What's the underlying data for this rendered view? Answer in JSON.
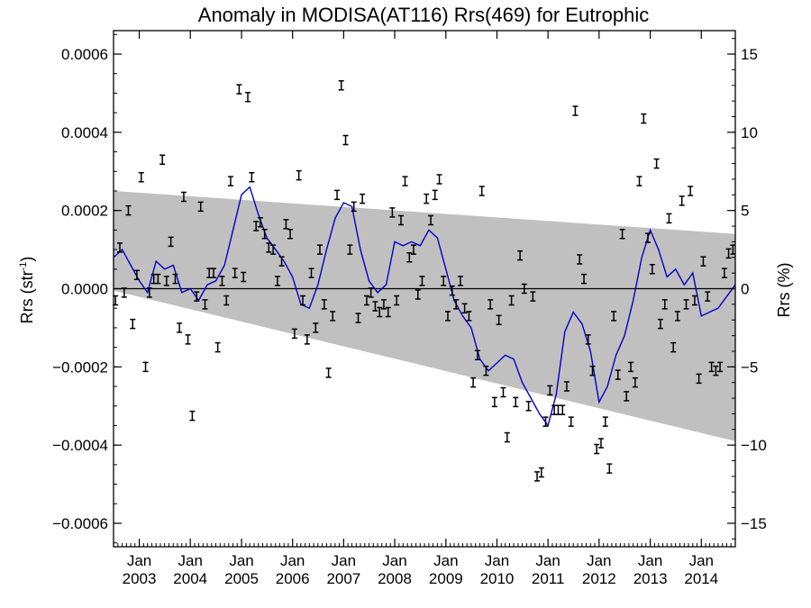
{
  "chart_data": {
    "type": "scatter",
    "title": "Anomaly in MODISA(AT116) Rrs(469) for Eutrophic",
    "ylabel_left": {
      "text": "Rrs (str",
      "sup": "-1",
      "close": ")"
    },
    "ylabel_right": "Rrs (%)",
    "x_range": [
      "2002-07-01",
      "2014-09-01"
    ],
    "y_left_range": [
      -0.00066,
      0.00066
    ],
    "y_right_range": [
      -16.5,
      16.5
    ],
    "y_left_ticks": [
      {
        "value": 0.0006,
        "label": "0.0006"
      },
      {
        "value": 0.0004,
        "label": "0.0004"
      },
      {
        "value": 0.0002,
        "label": "0.0002"
      },
      {
        "value": 0.0,
        "label": "0.0000"
      },
      {
        "value": -0.0002,
        "label": "−0.0002"
      },
      {
        "value": -0.0004,
        "label": "−0.0004"
      },
      {
        "value": -0.0006,
        "label": "−0.0006"
      }
    ],
    "y_right_ticks": [
      {
        "value": 15,
        "label": "15"
      },
      {
        "value": 10,
        "label": "10"
      },
      {
        "value": 5,
        "label": "5"
      },
      {
        "value": 0,
        "label": "0"
      },
      {
        "value": -5,
        "label": "−5"
      },
      {
        "value": -10,
        "label": "−10"
      },
      {
        "value": -15,
        "label": "−15"
      }
    ],
    "x_ticks": [
      {
        "date": "2003-01-01",
        "month": "Jan",
        "year": "2003"
      },
      {
        "date": "2004-01-01",
        "month": "Jan",
        "year": "2004"
      },
      {
        "date": "2005-01-01",
        "month": "Jan",
        "year": "2005"
      },
      {
        "date": "2006-01-01",
        "month": "Jan",
        "year": "2006"
      },
      {
        "date": "2007-01-01",
        "month": "Jan",
        "year": "2007"
      },
      {
        "date": "2008-01-01",
        "month": "Jan",
        "year": "2008"
      },
      {
        "date": "2009-01-01",
        "month": "Jan",
        "year": "2009"
      },
      {
        "date": "2010-01-01",
        "month": "Jan",
        "year": "2010"
      },
      {
        "date": "2011-01-01",
        "month": "Jan",
        "year": "2011"
      },
      {
        "date": "2012-01-01",
        "month": "Jan",
        "year": "2012"
      },
      {
        "date": "2013-01-01",
        "month": "Jan",
        "year": "2013"
      },
      {
        "date": "2014-01-01",
        "month": "Jan",
        "year": "2014"
      }
    ],
    "band": {
      "upper": [
        [
          "2002-07-01",
          0.00025
        ],
        [
          "2014-09-01",
          0.00014
        ]
      ],
      "lower": [
        [
          "2002-07-01",
          -5e-06
        ],
        [
          "2014-09-01",
          -0.00039
        ]
      ],
      "color": "#c0c0c0"
    },
    "smooth_color": "#0000cc",
    "point_color": "#000000",
    "points": [
      [
        "2002-07-15",
        -3e-05
      ],
      [
        "2002-08-15",
        0.000105
      ],
      [
        "2002-09-15",
        -1e-05
      ],
      [
        "2002-10-15",
        0.0002
      ],
      [
        "2002-11-15",
        -9e-05
      ],
      [
        "2002-12-15",
        3.5e-05
      ],
      [
        "2003-01-15",
        0.000285
      ],
      [
        "2003-02-15",
        -0.0002
      ],
      [
        "2003-03-15",
        -1e-05
      ],
      [
        "2003-04-15",
        2.5e-05
      ],
      [
        "2003-05-15",
        2.5e-05
      ],
      [
        "2003-06-15",
        0.00033
      ],
      [
        "2003-07-15",
        2e-05
      ],
      [
        "2003-08-15",
        0.00012
      ],
      [
        "2003-09-15",
        2.5e-05
      ],
      [
        "2003-10-15",
        -0.0001
      ],
      [
        "2003-11-15",
        0.000235
      ],
      [
        "2003-12-15",
        -0.00013
      ],
      [
        "2004-01-15",
        -0.000325
      ],
      [
        "2004-02-15",
        -2e-05
      ],
      [
        "2004-03-15",
        0.00021
      ],
      [
        "2004-04-15",
        -4e-05
      ],
      [
        "2004-05-15",
        4e-05
      ],
      [
        "2004-06-15",
        4e-05
      ],
      [
        "2004-07-15",
        -0.00015
      ],
      [
        "2004-08-15",
        2e-05
      ],
      [
        "2004-09-15",
        -3e-05
      ],
      [
        "2004-10-15",
        0.000275
      ],
      [
        "2004-11-15",
        4e-05
      ],
      [
        "2004-12-15",
        0.00051
      ],
      [
        "2005-01-15",
        3e-05
      ],
      [
        "2005-02-15",
        0.00049
      ],
      [
        "2005-03-15",
        0.000285
      ],
      [
        "2005-04-15",
        0.00016
      ],
      [
        "2005-05-15",
        0.00017
      ],
      [
        "2005-06-15",
        0.00014
      ],
      [
        "2005-07-15",
        0.000105
      ],
      [
        "2005-08-15",
        0.0001
      ],
      [
        "2005-09-15",
        2e-05
      ],
      [
        "2005-10-15",
        7e-05
      ],
      [
        "2005-11-15",
        0.000165
      ],
      [
        "2005-12-15",
        0.00014
      ],
      [
        "2006-01-15",
        -0.000115
      ],
      [
        "2006-02-15",
        0.00029
      ],
      [
        "2006-03-15",
        -3e-05
      ],
      [
        "2006-04-15",
        -0.00013
      ],
      [
        "2006-05-15",
        4e-05
      ],
      [
        "2006-06-15",
        -0.0001
      ],
      [
        "2006-07-15",
        0.0001
      ],
      [
        "2006-08-15",
        -4e-05
      ],
      [
        "2006-09-15",
        -0.000215
      ],
      [
        "2006-10-15",
        -7e-05
      ],
      [
        "2006-11-15",
        0.00024
      ],
      [
        "2006-12-15",
        0.00052
      ],
      [
        "2007-01-15",
        0.00038
      ],
      [
        "2007-02-15",
        0.0001
      ],
      [
        "2007-03-15",
        0.00021
      ],
      [
        "2007-04-15",
        -7.5e-05
      ],
      [
        "2007-05-15",
        0.00023
      ],
      [
        "2007-06-15",
        -3e-05
      ],
      [
        "2007-07-15",
        -1e-05
      ],
      [
        "2007-08-15",
        -4.5e-05
      ],
      [
        "2007-09-15",
        -6e-05
      ],
      [
        "2007-10-15",
        -4e-05
      ],
      [
        "2007-11-15",
        -6e-05
      ],
      [
        "2007-12-15",
        0.000195
      ],
      [
        "2008-01-15",
        -3e-05
      ],
      [
        "2008-02-15",
        0.000175
      ],
      [
        "2008-03-15",
        0.000275
      ],
      [
        "2008-04-15",
        8e-05
      ],
      [
        "2008-05-15",
        0.0001
      ],
      [
        "2008-06-15",
        -1.5e-05
      ],
      [
        "2008-07-15",
        2e-05
      ],
      [
        "2008-08-15",
        0.00023
      ],
      [
        "2008-09-15",
        0.000175
      ],
      [
        "2008-10-15",
        0.00024
      ],
      [
        "2008-11-15",
        0.00028
      ],
      [
        "2008-12-15",
        2e-05
      ],
      [
        "2009-01-15",
        -7e-05
      ],
      [
        "2009-02-15",
        -5e-06
      ],
      [
        "2009-03-15",
        -4e-05
      ],
      [
        "2009-04-15",
        2e-05
      ],
      [
        "2009-05-15",
        -5e-05
      ],
      [
        "2009-06-15",
        -7e-05
      ],
      [
        "2009-07-15",
        -0.00024
      ],
      [
        "2009-08-15",
        -0.00017
      ],
      [
        "2009-09-15",
        0.00025
      ],
      [
        "2009-10-15",
        -0.00021
      ],
      [
        "2009-11-15",
        -4e-05
      ],
      [
        "2009-12-15",
        -0.00029
      ],
      [
        "2010-01-15",
        -8e-05
      ],
      [
        "2010-02-15",
        -0.000265
      ],
      [
        "2010-03-15",
        -0.00038
      ],
      [
        "2010-04-15",
        -3e-05
      ],
      [
        "2010-05-15",
        -0.00029
      ],
      [
        "2010-06-15",
        8.5e-05
      ],
      [
        "2010-07-15",
        0.0
      ],
      [
        "2010-08-15",
        -0.0003
      ],
      [
        "2010-09-15",
        -2e-05
      ],
      [
        "2010-10-15",
        -0.00048
      ],
      [
        "2010-11-15",
        -0.00047
      ],
      [
        "2010-12-15",
        -0.00034
      ],
      [
        "2011-01-15",
        -0.00026
      ],
      [
        "2011-02-15",
        -0.00031
      ],
      [
        "2011-03-15",
        -0.00031
      ],
      [
        "2011-04-15",
        -0.00031
      ],
      [
        "2011-05-15",
        -0.00025
      ],
      [
        "2011-06-15",
        -0.00034
      ],
      [
        "2011-07-15",
        0.000455
      ],
      [
        "2011-08-15",
        7.5e-05
      ],
      [
        "2011-09-15",
        2.5e-05
      ],
      [
        "2011-10-15",
        -0.00013
      ],
      [
        "2011-11-15",
        -0.00021
      ],
      [
        "2011-12-15",
        -0.00041
      ],
      [
        "2012-01-15",
        -0.000395
      ],
      [
        "2012-02-15",
        -0.00034
      ],
      [
        "2012-03-15",
        -0.00046
      ],
      [
        "2012-04-15",
        -7e-05
      ],
      [
        "2012-05-15",
        -0.00022
      ],
      [
        "2012-06-15",
        0.00014
      ],
      [
        "2012-07-15",
        -0.000275
      ],
      [
        "2012-08-15",
        -0.0002
      ],
      [
        "2012-09-15",
        -0.00024
      ],
      [
        "2012-10-15",
        0.000275
      ],
      [
        "2012-11-15",
        0.000435
      ],
      [
        "2012-12-15",
        0.00013
      ],
      [
        "2013-01-15",
        5e-05
      ],
      [
        "2013-02-15",
        0.00032
      ],
      [
        "2013-03-15",
        -9e-05
      ],
      [
        "2013-04-15",
        -4e-05
      ],
      [
        "2013-05-15",
        0.00018
      ],
      [
        "2013-06-15",
        -0.00015
      ],
      [
        "2013-07-15",
        -7e-05
      ],
      [
        "2013-08-15",
        0.000225
      ],
      [
        "2013-09-15",
        -4e-05
      ],
      [
        "2013-10-15",
        0.00025
      ],
      [
        "2013-11-15",
        -3e-05
      ],
      [
        "2013-12-15",
        -0.00023
      ],
      [
        "2014-01-15",
        7e-05
      ],
      [
        "2014-02-15",
        -2e-05
      ],
      [
        "2014-03-15",
        -0.0002
      ],
      [
        "2014-04-15",
        -0.00021
      ],
      [
        "2014-05-15",
        -0.0002
      ],
      [
        "2014-06-15",
        4e-05
      ],
      [
        "2014-07-15",
        9e-05
      ],
      [
        "2014-08-15",
        0.0001
      ]
    ],
    "smooth": [
      [
        "2002-07-01",
        8e-05
      ],
      [
        "2002-09-01",
        0.0001
      ],
      [
        "2002-11-01",
        6e-05
      ],
      [
        "2003-01-01",
        2e-05
      ],
      [
        "2003-03-01",
        -1e-05
      ],
      [
        "2003-05-01",
        7e-05
      ],
      [
        "2003-07-01",
        5e-05
      ],
      [
        "2003-09-01",
        6e-05
      ],
      [
        "2003-11-01",
        -1e-05
      ],
      [
        "2004-01-01",
        0.0
      ],
      [
        "2004-03-01",
        -3e-05
      ],
      [
        "2004-05-01",
        1e-05
      ],
      [
        "2004-07-01",
        2e-05
      ],
      [
        "2004-09-01",
        6e-05
      ],
      [
        "2004-11-01",
        0.00015
      ],
      [
        "2005-01-01",
        0.00024
      ],
      [
        "2005-03-01",
        0.00026
      ],
      [
        "2005-05-01",
        0.00019
      ],
      [
        "2005-07-01",
        0.00013
      ],
      [
        "2005-09-01",
        0.0001
      ],
      [
        "2005-11-01",
        7e-05
      ],
      [
        "2006-01-01",
        3e-05
      ],
      [
        "2006-03-01",
        -4e-05
      ],
      [
        "2006-05-01",
        -5e-05
      ],
      [
        "2006-07-01",
        1e-05
      ],
      [
        "2006-09-01",
        0.0001
      ],
      [
        "2006-11-01",
        0.00018
      ],
      [
        "2007-01-01",
        0.00022
      ],
      [
        "2007-03-01",
        0.00021
      ],
      [
        "2007-05-01",
        0.0001
      ],
      [
        "2007-07-01",
        2e-05
      ],
      [
        "2007-09-01",
        -1e-05
      ],
      [
        "2007-11-01",
        1e-05
      ],
      [
        "2008-01-01",
        0.00012
      ],
      [
        "2008-03-01",
        0.00011
      ],
      [
        "2008-05-01",
        0.00012
      ],
      [
        "2008-07-01",
        0.00011
      ],
      [
        "2008-09-01",
        0.00015
      ],
      [
        "2008-11-01",
        0.00013
      ],
      [
        "2009-01-01",
        5e-05
      ],
      [
        "2009-03-01",
        -3e-05
      ],
      [
        "2009-05-01",
        -7e-05
      ],
      [
        "2009-07-01",
        -0.0001
      ],
      [
        "2009-09-01",
        -0.00018
      ],
      [
        "2009-11-01",
        -0.00021
      ],
      [
        "2010-01-01",
        -0.00019
      ],
      [
        "2010-03-01",
        -0.00017
      ],
      [
        "2010-05-01",
        -0.00018
      ],
      [
        "2010-07-01",
        -0.00024
      ],
      [
        "2010-09-01",
        -0.00028
      ],
      [
        "2010-11-01",
        -0.00032
      ],
      [
        "2011-01-01",
        -0.00035
      ],
      [
        "2011-03-01",
        -0.00027
      ],
      [
        "2011-05-01",
        -0.00011
      ],
      [
        "2011-07-01",
        -6e-05
      ],
      [
        "2011-09-01",
        -9e-05
      ],
      [
        "2011-11-01",
        -0.00016
      ],
      [
        "2012-01-01",
        -0.00029
      ],
      [
        "2012-03-01",
        -0.00025
      ],
      [
        "2012-05-01",
        -0.00017
      ],
      [
        "2012-07-01",
        -0.00012
      ],
      [
        "2012-09-01",
        -3e-05
      ],
      [
        "2012-11-01",
        8e-05
      ],
      [
        "2013-01-01",
        0.00015
      ],
      [
        "2013-03-01",
        0.0001
      ],
      [
        "2013-05-01",
        3e-05
      ],
      [
        "2013-07-01",
        5e-05
      ],
      [
        "2013-09-01",
        1e-05
      ],
      [
        "2013-11-01",
        4e-05
      ],
      [
        "2014-01-01",
        -7e-05
      ],
      [
        "2014-03-01",
        -6e-05
      ],
      [
        "2014-05-01",
        -5e-05
      ],
      [
        "2014-07-01",
        -2e-05
      ],
      [
        "2014-09-01",
        1e-05
      ]
    ]
  }
}
